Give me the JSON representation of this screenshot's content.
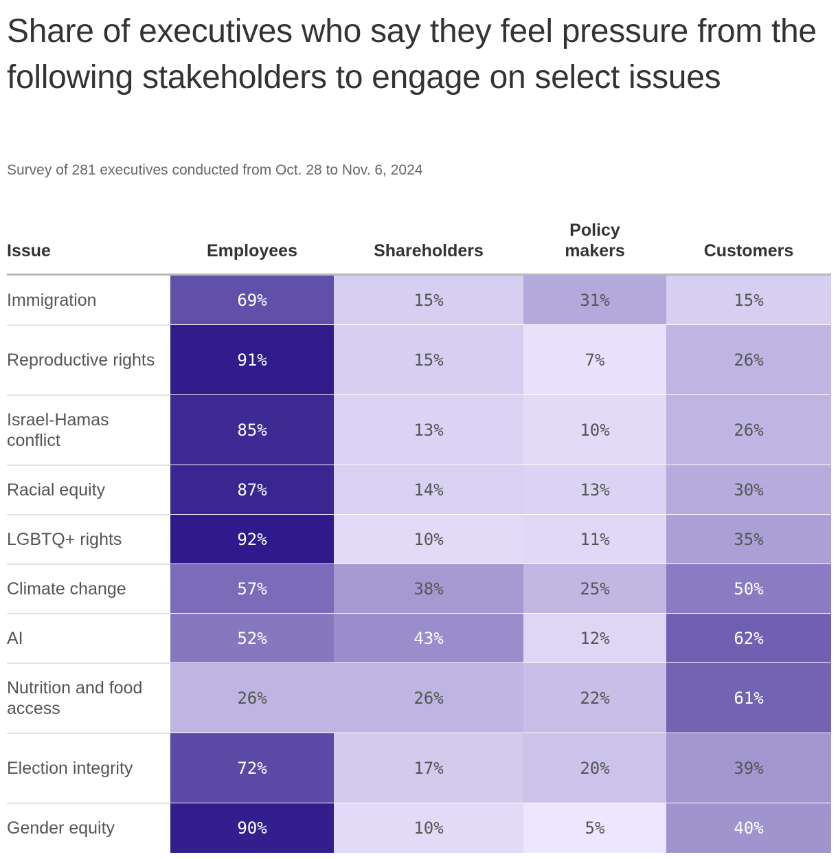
{
  "chart_data": {
    "type": "table",
    "title": "Share of executives who say they feel pressure from the following stakeholders to engage on select issues",
    "subtitle": "Survey of 281 executives conducted from Oct. 28 to Nov. 6, 2024",
    "row_header": "Issue",
    "columns": [
      "Employees",
      "Shareholders",
      "Policy makers",
      "Customers"
    ],
    "rows": [
      {
        "label": "Immigration",
        "values": [
          69,
          15,
          31,
          15
        ]
      },
      {
        "label": "Reproductive rights",
        "values": [
          91,
          15,
          7,
          26
        ]
      },
      {
        "label": "Israel-Hamas conflict",
        "values": [
          85,
          13,
          10,
          26
        ]
      },
      {
        "label": "Racial equity",
        "values": [
          87,
          14,
          13,
          30
        ]
      },
      {
        "label": "LGBTQ+ rights",
        "values": [
          92,
          10,
          11,
          35
        ]
      },
      {
        "label": "Climate change",
        "values": [
          57,
          38,
          25,
          50
        ]
      },
      {
        "label": "AI",
        "values": [
          52,
          43,
          12,
          62
        ]
      },
      {
        "label": "Nutrition and food access",
        "values": [
          26,
          26,
          22,
          61
        ]
      },
      {
        "label": "Election integrity",
        "values": [
          72,
          17,
          20,
          39
        ]
      },
      {
        "label": "Gender equity",
        "values": [
          90,
          10,
          5,
          40
        ]
      }
    ],
    "value_suffix": "%",
    "color_scale": {
      "low": "#ede6fe",
      "high": "#2e1a8a",
      "dark_text": "#555555",
      "light_text": "#ffffff"
    }
  }
}
